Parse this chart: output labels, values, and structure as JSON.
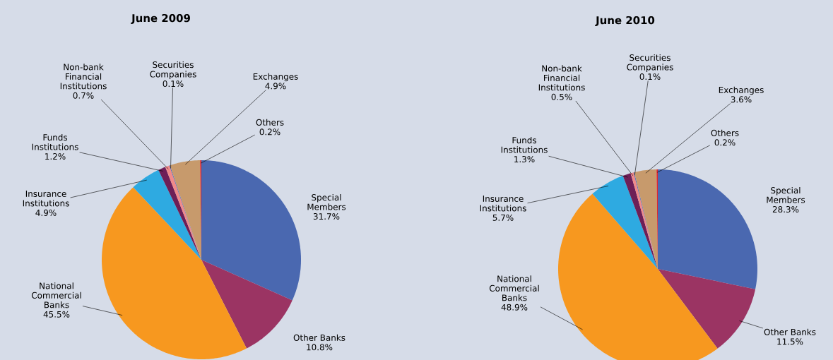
{
  "chart_data": [
    {
      "type": "pie",
      "title": "June 2009",
      "categories": [
        "Special Members",
        "Other Banks",
        "National Commercial Banks",
        "Insurance Institutions",
        "Funds Institutions",
        "Non-bank Financial Institutions",
        "Securities Companies",
        "Exchanges",
        "Others"
      ],
      "values": [
        31.7,
        10.8,
        45.5,
        4.9,
        1.2,
        0.7,
        0.1,
        4.9,
        0.2
      ],
      "value_labels": [
        "31.7%",
        "10.8%",
        "45.5%",
        "4.9%",
        "1.2%",
        "0.7%",
        "0.1%",
        "4.9%",
        "0.2%"
      ],
      "colors": [
        "#4a68b0",
        "#9b3463",
        "#f7981f",
        "#2eaae1",
        "#6e1f57",
        "#f08a8a",
        "#3f62b5",
        "#c79a6c",
        "#e0262a"
      ]
    },
    {
      "type": "pie",
      "title": "June 2010",
      "categories": [
        "Special Members",
        "Other Banks",
        "National Commercial Banks",
        "Insurance Institutions",
        "Funds Institutions",
        "Non-bank Financial Institutions",
        "Securities Companies",
        "Exchanges",
        "Others"
      ],
      "values": [
        28.3,
        11.5,
        48.9,
        5.7,
        1.3,
        0.5,
        0.1,
        3.6,
        0.2
      ],
      "value_labels": [
        "28.3%",
        "11.5%",
        "48.9%",
        "5.7%",
        "1.3%",
        "0.5%",
        "0.1%",
        "3.6%",
        "0.2%"
      ],
      "colors": [
        "#4a68b0",
        "#9b3463",
        "#f7981f",
        "#2eaae1",
        "#6e1f57",
        "#f08a8a",
        "#3f62b5",
        "#c79a6c",
        "#e0262a"
      ]
    }
  ]
}
